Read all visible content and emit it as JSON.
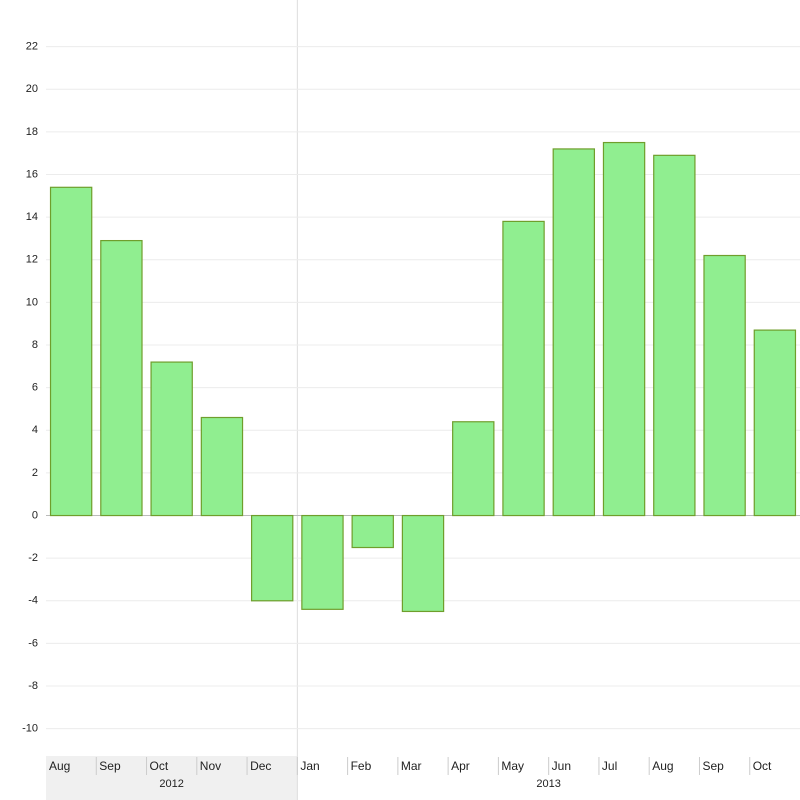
{
  "chart_data": {
    "type": "bar",
    "categories": [
      "Aug",
      "Sep",
      "Oct",
      "Nov",
      "Dec",
      "Jan",
      "Feb",
      "Mar",
      "Apr",
      "May",
      "Jun",
      "Jul",
      "Aug",
      "Sep",
      "Oct"
    ],
    "category_groups": [
      "2012",
      "2012",
      "2012",
      "2012",
      "2012",
      "2013",
      "2013",
      "2013",
      "2013",
      "2013",
      "2013",
      "2013",
      "2013",
      "2013",
      "2013"
    ],
    "values": [
      15.4,
      12.9,
      7.2,
      4.6,
      -4.0,
      -4.4,
      -1.5,
      -4.5,
      4.4,
      13.8,
      17.2,
      17.5,
      16.9,
      12.2,
      8.7
    ],
    "color": "#90ee90",
    "edge_color": "#6f9e2c",
    "ylim": [
      -11,
      24
    ],
    "yticks": [
      -10,
      -8,
      -6,
      -4,
      -2,
      0,
      2,
      4,
      6,
      8,
      10,
      12,
      14,
      16,
      18,
      20,
      22
    ],
    "grid": true
  }
}
